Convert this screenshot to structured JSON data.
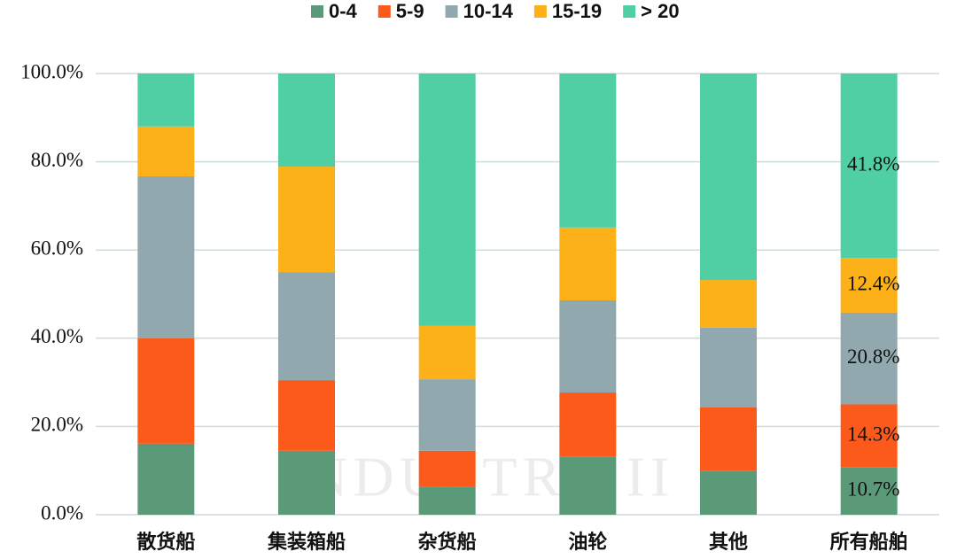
{
  "chart_data": {
    "type": "stacked_bar",
    "categories": [
      "散货船",
      "集装箱船",
      "杂货船",
      "油轮",
      "其他",
      "所有船舶"
    ],
    "series": [
      {
        "name": "0-4",
        "color": "#5a9a78",
        "values": [
          16.1,
          14.5,
          6.4,
          13.1,
          10.0,
          10.7
        ],
        "value_labels": [
          null,
          null,
          null,
          null,
          null,
          "10.7%"
        ]
      },
      {
        "name": "5-9",
        "color": "#fc5a1a",
        "values": [
          23.9,
          16.0,
          8.1,
          14.6,
          14.3,
          14.3
        ],
        "value_labels": [
          null,
          null,
          null,
          null,
          null,
          "14.3%"
        ]
      },
      {
        "name": "10-14",
        "color": "#90a8ae",
        "values": [
          36.7,
          24.5,
          16.2,
          20.9,
          18.1,
          20.8
        ],
        "value_labels": [
          null,
          null,
          null,
          null,
          null,
          "20.8%"
        ]
      },
      {
        "name": "15-19",
        "color": "#fbb117",
        "values": [
          11.3,
          23.9,
          12.1,
          16.5,
          10.8,
          12.4
        ],
        "value_labels": [
          null,
          null,
          null,
          null,
          null,
          "12.4%"
        ]
      },
      {
        "name": "> 20",
        "color": "#4fcfa3",
        "values": [
          12.0,
          21.1,
          57.2,
          34.9,
          46.8,
          41.8
        ],
        "value_labels": [
          null,
          null,
          null,
          null,
          null,
          "41.8%"
        ]
      }
    ],
    "ylim": [
      0,
      100
    ],
    "yticks": [
      {
        "value": 0,
        "label": "0.0%"
      },
      {
        "value": 20,
        "label": "20.0%"
      },
      {
        "value": 40,
        "label": "40.0%"
      },
      {
        "value": 60,
        "label": "60.0%"
      },
      {
        "value": 80,
        "label": "80.0%"
      },
      {
        "value": 100,
        "label": "100.0%"
      }
    ],
    "grid": true,
    "legend": "top",
    "watermark": "INDUSTRY II"
  }
}
